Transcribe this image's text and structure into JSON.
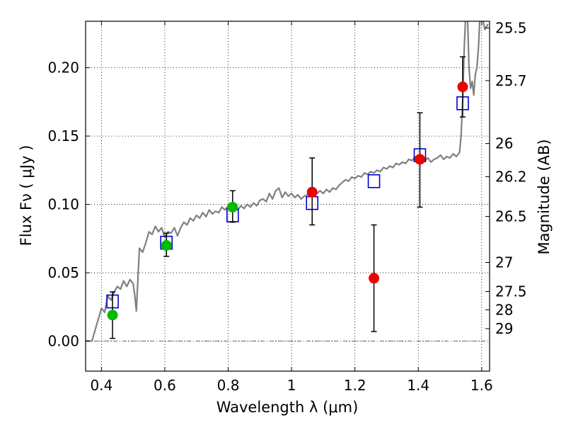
{
  "chart_data": {
    "type": "scatter",
    "xlabel": "Wavelength  λ (μm)",
    "ylabel": "Flux  Fν  ( μJy )",
    "ylabel2": "Magnitude (AB)",
    "xlim": [
      0.35,
      1.625
    ],
    "ylim": [
      -0.022,
      0.234
    ],
    "grid": true,
    "grid_style": "dotted",
    "xticks": [
      {
        "value": 0.4,
        "label": "0.4"
      },
      {
        "value": 0.6,
        "label": "0.6"
      },
      {
        "value": 0.8,
        "label": "0.8"
      },
      {
        "value": 1.0,
        "label": "1"
      },
      {
        "value": 1.2,
        "label": "1.2"
      },
      {
        "value": 1.4,
        "label": "1.4"
      },
      {
        "value": 1.6,
        "label": "1.6"
      }
    ],
    "yticks": [
      {
        "value": 0.0,
        "label": "0.00"
      },
      {
        "value": 0.05,
        "label": "0.05"
      },
      {
        "value": 0.1,
        "label": "0.10"
      },
      {
        "value": 0.15,
        "label": "0.15"
      },
      {
        "value": 0.2,
        "label": "0.20"
      }
    ],
    "right_ticks": [
      {
        "value": 25.5,
        "label": "25.5"
      },
      {
        "value": 25.7,
        "label": "25.7"
      },
      {
        "value": 26,
        "label": "26"
      },
      {
        "value": 26.2,
        "label": "26.2"
      },
      {
        "value": 26.5,
        "label": "26.5"
      },
      {
        "value": 27,
        "label": "27"
      },
      {
        "value": 27.5,
        "label": "27.5"
      },
      {
        "value": 28,
        "label": "28"
      },
      {
        "value": 29,
        "label": "29"
      }
    ],
    "colors": {
      "template": "#808080",
      "model": "#0000cc",
      "detected": "#00bb00",
      "measured": "#ee0000",
      "errorbar": "#000000",
      "grid": "#000000"
    },
    "series": [
      {
        "kind": "template_spectrum",
        "points": [
          [
            0.37,
            0.0
          ],
          [
            0.38,
            0.008
          ],
          [
            0.39,
            0.016
          ],
          [
            0.4,
            0.024
          ],
          [
            0.41,
            0.021
          ],
          [
            0.42,
            0.033
          ],
          [
            0.43,
            0.03
          ],
          [
            0.44,
            0.036
          ],
          [
            0.45,
            0.04
          ],
          [
            0.46,
            0.038
          ],
          [
            0.47,
            0.044
          ],
          [
            0.48,
            0.04
          ],
          [
            0.49,
            0.045
          ],
          [
            0.5,
            0.042
          ],
          [
            0.505,
            0.034
          ],
          [
            0.51,
            0.022
          ],
          [
            0.52,
            0.068
          ],
          [
            0.53,
            0.065
          ],
          [
            0.54,
            0.072
          ],
          [
            0.55,
            0.08
          ],
          [
            0.56,
            0.078
          ],
          [
            0.57,
            0.084
          ],
          [
            0.58,
            0.08
          ],
          [
            0.59,
            0.083
          ],
          [
            0.6,
            0.076
          ],
          [
            0.61,
            0.08
          ],
          [
            0.62,
            0.079
          ],
          [
            0.63,
            0.083
          ],
          [
            0.64,
            0.077
          ],
          [
            0.65,
            0.083
          ],
          [
            0.66,
            0.087
          ],
          [
            0.67,
            0.085
          ],
          [
            0.68,
            0.09
          ],
          [
            0.69,
            0.088
          ],
          [
            0.7,
            0.092
          ],
          [
            0.71,
            0.09
          ],
          [
            0.72,
            0.094
          ],
          [
            0.73,
            0.091
          ],
          [
            0.74,
            0.096
          ],
          [
            0.75,
            0.093
          ],
          [
            0.76,
            0.095
          ],
          [
            0.77,
            0.094
          ],
          [
            0.78,
            0.098
          ],
          [
            0.79,
            0.096
          ],
          [
            0.8,
            0.099
          ],
          [
            0.81,
            0.095
          ],
          [
            0.82,
            0.098
          ],
          [
            0.83,
            0.096
          ],
          [
            0.84,
            0.099
          ],
          [
            0.85,
            0.097
          ],
          [
            0.86,
            0.1
          ],
          [
            0.87,
            0.098
          ],
          [
            0.88,
            0.101
          ],
          [
            0.89,
            0.099
          ],
          [
            0.9,
            0.103
          ],
          [
            0.91,
            0.104
          ],
          [
            0.92,
            0.102
          ],
          [
            0.93,
            0.108
          ],
          [
            0.94,
            0.104
          ],
          [
            0.95,
            0.11
          ],
          [
            0.96,
            0.112
          ],
          [
            0.97,
            0.105
          ],
          [
            0.98,
            0.109
          ],
          [
            0.99,
            0.106
          ],
          [
            1.0,
            0.108
          ],
          [
            1.01,
            0.105
          ],
          [
            1.02,
            0.107
          ],
          [
            1.03,
            0.104
          ],
          [
            1.04,
            0.106
          ],
          [
            1.05,
            0.107
          ],
          [
            1.06,
            0.108
          ],
          [
            1.07,
            0.11
          ],
          [
            1.08,
            0.108
          ],
          [
            1.09,
            0.11
          ],
          [
            1.1,
            0.108
          ],
          [
            1.11,
            0.111
          ],
          [
            1.12,
            0.109
          ],
          [
            1.13,
            0.112
          ],
          [
            1.14,
            0.111
          ],
          [
            1.15,
            0.114
          ],
          [
            1.16,
            0.116
          ],
          [
            1.17,
            0.118
          ],
          [
            1.18,
            0.117
          ],
          [
            1.19,
            0.12
          ],
          [
            1.2,
            0.119
          ],
          [
            1.21,
            0.121
          ],
          [
            1.22,
            0.12
          ],
          [
            1.23,
            0.123
          ],
          [
            1.24,
            0.122
          ],
          [
            1.25,
            0.124
          ],
          [
            1.26,
            0.123
          ],
          [
            1.27,
            0.125
          ],
          [
            1.28,
            0.124
          ],
          [
            1.29,
            0.127
          ],
          [
            1.3,
            0.126
          ],
          [
            1.31,
            0.128
          ],
          [
            1.32,
            0.127
          ],
          [
            1.33,
            0.13
          ],
          [
            1.34,
            0.129
          ],
          [
            1.35,
            0.131
          ],
          [
            1.36,
            0.13
          ],
          [
            1.37,
            0.133
          ],
          [
            1.38,
            0.132
          ],
          [
            1.39,
            0.135
          ],
          [
            1.4,
            0.133
          ],
          [
            1.41,
            0.134
          ],
          [
            1.42,
            0.132
          ],
          [
            1.43,
            0.134
          ],
          [
            1.44,
            0.131
          ],
          [
            1.45,
            0.133
          ],
          [
            1.46,
            0.134
          ],
          [
            1.47,
            0.136
          ],
          [
            1.48,
            0.133
          ],
          [
            1.49,
            0.135
          ],
          [
            1.5,
            0.134
          ],
          [
            1.51,
            0.137
          ],
          [
            1.52,
            0.135
          ],
          [
            1.53,
            0.138
          ],
          [
            1.535,
            0.15
          ],
          [
            1.54,
            0.175
          ],
          [
            1.545,
            0.215
          ],
          [
            1.55,
            0.24
          ],
          [
            1.555,
            0.24
          ],
          [
            1.56,
            0.2
          ],
          [
            1.565,
            0.185
          ],
          [
            1.57,
            0.19
          ],
          [
            1.575,
            0.18
          ],
          [
            1.58,
            0.195
          ],
          [
            1.585,
            0.2
          ],
          [
            1.59,
            0.215
          ],
          [
            1.595,
            0.24
          ],
          [
            1.6,
            0.24
          ],
          [
            1.61,
            0.228
          ],
          [
            1.62,
            0.232
          ]
        ]
      },
      {
        "kind": "model_photometry",
        "marker": "square",
        "points": [
          [
            0.435,
            0.029
          ],
          [
            0.605,
            0.072
          ],
          [
            0.814,
            0.092
          ],
          [
            1.065,
            0.101
          ],
          [
            1.26,
            0.117
          ],
          [
            1.405,
            0.136
          ],
          [
            1.54,
            0.174
          ]
        ]
      },
      {
        "kind": "detected_photometry",
        "marker": "circle",
        "points": [
          {
            "x": 0.435,
            "y": 0.019,
            "yerr_low": 0.002,
            "yerr_high": 0.036
          },
          {
            "x": 0.605,
            "y": 0.07,
            "yerr_low": 0.062,
            "yerr_high": 0.079
          },
          {
            "x": 0.814,
            "y": 0.098,
            "yerr_low": 0.087,
            "yerr_high": 0.11
          }
        ]
      },
      {
        "kind": "measured_photometry",
        "marker": "circle",
        "points": [
          {
            "x": 1.065,
            "y": 0.109,
            "yerr_low": 0.085,
            "yerr_high": 0.134
          },
          {
            "x": 1.26,
            "y": 0.046,
            "yerr_low": 0.007,
            "yerr_high": 0.085
          },
          {
            "x": 1.405,
            "y": 0.133,
            "yerr_low": 0.098,
            "yerr_high": 0.167
          },
          {
            "x": 1.54,
            "y": 0.186,
            "yerr_low": 0.164,
            "yerr_high": 0.208
          }
        ]
      }
    ]
  }
}
